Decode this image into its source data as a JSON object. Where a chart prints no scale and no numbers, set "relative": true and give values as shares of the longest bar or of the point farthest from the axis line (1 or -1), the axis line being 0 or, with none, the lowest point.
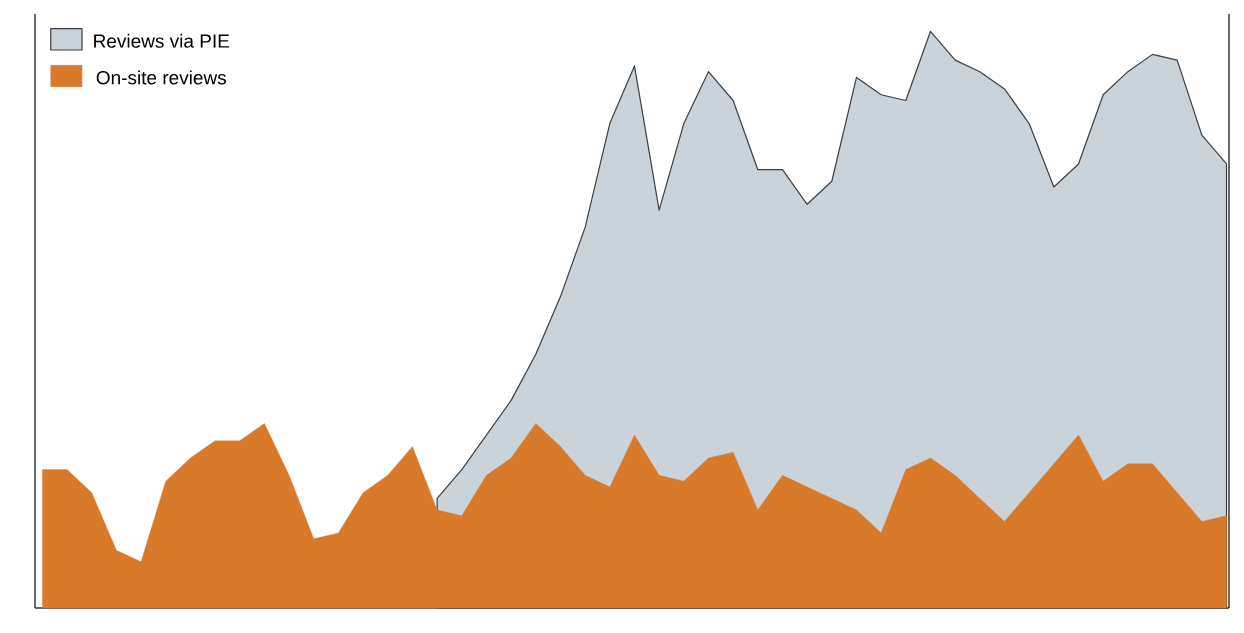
{
  "chart_data": {
    "type": "area",
    "relative": true,
    "legend": "top left",
    "categories": [
      null,
      null,
      null,
      null,
      null,
      null,
      null,
      null,
      null,
      null,
      null,
      null,
      null,
      null,
      null,
      null,
      null,
      null,
      null,
      null,
      null,
      null,
      null,
      null,
      null,
      null,
      null,
      null,
      null,
      null,
      null,
      null,
      null,
      null,
      null,
      null,
      null,
      null,
      null,
      null,
      null,
      null,
      null,
      null,
      null,
      null,
      null,
      null,
      null
    ],
    "series": [
      {
        "name": "Reviews via PIE",
        "color": "#c9d3d9",
        "values": [
          null,
          null,
          null,
          null,
          null,
          null,
          null,
          null,
          null,
          null,
          null,
          null,
          null,
          null,
          null,
          null,
          0.19,
          0.24,
          0.3,
          0.36,
          0.44,
          0.54,
          0.66,
          0.84,
          0.94,
          0.69,
          0.84,
          0.93,
          0.88,
          0.76,
          0.76,
          0.7,
          0.74,
          0.92,
          0.89,
          0.88,
          1,
          0.95,
          0.93,
          0.9,
          0.84,
          0.73,
          0.77,
          0.89,
          0.93,
          0.96,
          0.95,
          0.82,
          0.77
        ]
      },
      {
        "name": "On-site reviews",
        "color": "#d97a2b",
        "values": [
          0.24,
          0.24,
          0.2,
          0.1,
          0.08,
          0.22,
          0.26,
          0.29,
          0.29,
          0.32,
          0.23,
          0.12,
          0.13,
          0.2,
          0.23,
          0.28,
          0.17,
          0.16,
          0.23,
          0.26,
          0.32,
          0.28,
          0.23,
          0.21,
          0.3,
          0.23,
          0.22,
          0.26,
          0.27,
          0.17,
          0.23,
          0.21,
          0.19,
          0.17,
          0.13,
          0.24,
          0.26,
          0.23,
          0.19,
          0.15,
          0.2,
          0.25,
          0.3,
          0.22,
          0.25,
          0.25,
          0.2,
          0.15,
          0.16
        ]
      }
    ]
  }
}
